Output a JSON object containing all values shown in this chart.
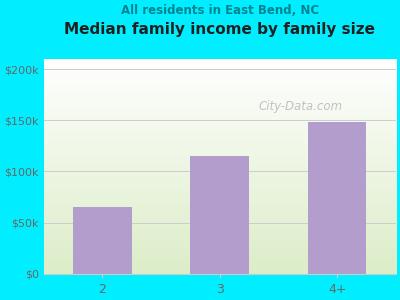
{
  "title": "Median family income by family size",
  "subtitle": "All residents in East Bend, NC",
  "categories": [
    "2",
    "3",
    "4+"
  ],
  "values": [
    65000,
    115000,
    148000
  ],
  "bar_color": "#b39dcc",
  "background_color": "#00eeff",
  "title_color": "#212121",
  "subtitle_color": "#00838f",
  "axis_label_color": "#666666",
  "yticks": [
    0,
    50000,
    100000,
    150000,
    200000
  ],
  "ytick_labels": [
    "$0",
    "$50k",
    "$100k",
    "$150k",
    "$200k"
  ],
  "ylim": [
    0,
    210000
  ],
  "watermark": "City-Data.com",
  "watermark_color": "#aaaaaa",
  "grid_color": "#cccccc",
  "plot_bg_color_top": "#dcedc8",
  "plot_bg_color_bottom": "#ffffff"
}
